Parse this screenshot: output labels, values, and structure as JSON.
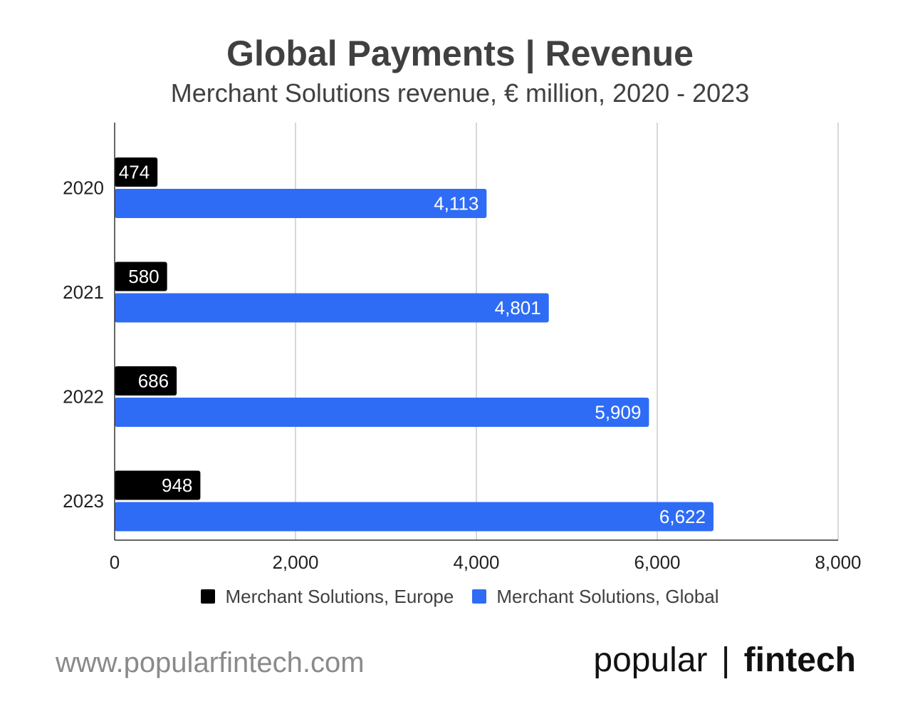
{
  "chart_data": {
    "type": "bar",
    "orientation": "horizontal",
    "title": "Global Payments | Revenue",
    "subtitle": "Merchant Solutions revenue, € million, 2020 - 2023",
    "categories": [
      "2020",
      "2021",
      "2022",
      "2023"
    ],
    "series": [
      {
        "name": "Merchant Solutions, Europe",
        "color": "#000000",
        "values": [
          474,
          580,
          686,
          948
        ],
        "labels": [
          "474",
          "580",
          "686",
          "948"
        ]
      },
      {
        "name": "Merchant Solutions, Global",
        "color": "#2f6cf6",
        "values": [
          4113,
          4801,
          5909,
          6622
        ],
        "labels": [
          "4,113",
          "4,801",
          "5,909",
          "6,622"
        ]
      }
    ],
    "xlim": [
      0,
      8000
    ],
    "xticks": [
      0,
      2000,
      4000,
      6000,
      8000
    ],
    "xtick_labels": [
      "0",
      "2,000",
      "4,000",
      "6,000",
      "8,000"
    ],
    "grid": true,
    "legend_position": "bottom"
  },
  "footer": {
    "url": "www.popularfintech.com",
    "brand_light": "popular",
    "brand_separator": "|",
    "brand_bold": "fintech"
  }
}
